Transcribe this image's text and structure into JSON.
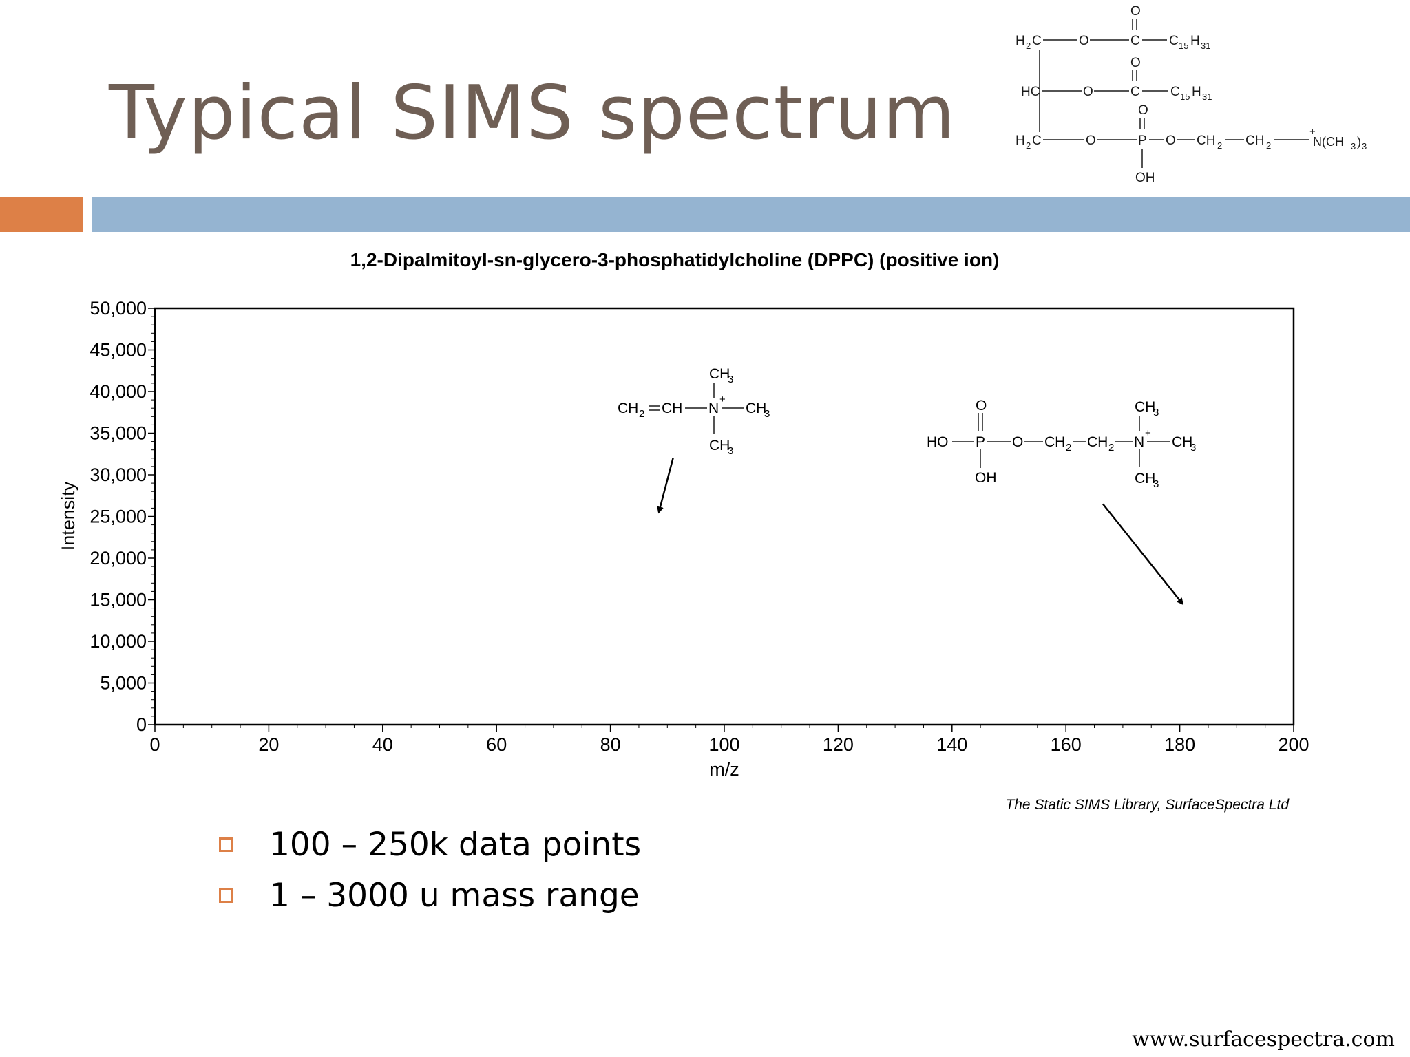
{
  "slide": {
    "title": "Typical SIMS spectrum",
    "bullets": [
      "100 – 250k data points",
      "1 – 3000 u mass range"
    ],
    "credit": "The Static SIMS Library, SurfaceSpectra Ltd",
    "website": "www.surfacespectra.com",
    "colors": {
      "title": "#6f5f55",
      "accent": "#dd8047",
      "band": "#95b4d1"
    }
  },
  "dppc_structure": {
    "row1": {
      "left": "H",
      "left_sub": "2",
      "left_c": "C",
      "o": "O",
      "c": "C",
      "top_o": "O",
      "chain": "C",
      "chain_sub1": "15",
      "chain_h": "H",
      "chain_sub2": "31"
    },
    "row2": {
      "left": "HC",
      "o": "O",
      "c": "C",
      "top_o": "O",
      "chain": "C",
      "chain_sub1": "15",
      "chain_h": "H",
      "chain_sub2": "31"
    },
    "row3": {
      "left": "H",
      "left_sub": "2",
      "left_c": "C",
      "o1": "O",
      "p": "P",
      "top_o": "O",
      "bottom": "OH",
      "o2": "O",
      "ch2a": "CH",
      "ch2a_sub": "2",
      "ch2b": "CH",
      "ch2b_sub": "2",
      "charge": "+",
      "amine": "N(CH ",
      "amine_sub": "3",
      "amine_close": ")",
      "amine_sub2": "3"
    }
  },
  "fragment_1": {
    "ch2": "CH",
    "ch2_sub": "2",
    "ch": "CH",
    "n": "N",
    "charge": "+",
    "ch3_top": "CH",
    "ch3_right": "CH",
    "ch3_bottom": "CH",
    "sub3": "3"
  },
  "fragment_2": {
    "ho": "HO",
    "p": "P",
    "top_o": "O",
    "oh": "OH",
    "o": "O",
    "ch2a": "CH",
    "ch2b": "CH",
    "sub2": "2",
    "n": "N",
    "charge": "+",
    "ch3_top": "CH",
    "ch3_right": "CH",
    "ch3_bottom": "CH",
    "sub3": "3"
  },
  "chart_data": {
    "type": "line",
    "title": "1,2-Dipalmitoyl-sn-glycero-3-phosphatidylcholine (DPPC)  (positive ion)",
    "xlabel": "m/z",
    "ylabel": "Intensity",
    "xlim": [
      0,
      200
    ],
    "ylim": [
      0,
      50000
    ],
    "x_ticks": [
      0,
      20,
      40,
      60,
      80,
      100,
      120,
      140,
      160,
      180,
      200
    ],
    "x_tick_labels": [
      "0",
      "20",
      "40",
      "60",
      "80",
      "100",
      "120",
      "140",
      "160",
      "180",
      "200"
    ],
    "y_ticks": [
      0,
      5000,
      10000,
      15000,
      20000,
      25000,
      30000,
      35000,
      40000,
      45000,
      50000
    ],
    "y_tick_labels": [
      "0",
      "5,000",
      "10,000",
      "15,000",
      "20,000",
      "25,000",
      "30,000",
      "35,000",
      "40,000",
      "45,000",
      "50,000"
    ],
    "grid": false,
    "series": [],
    "annotations": [
      {
        "text": "fragment_1",
        "arrow_from": [
          91,
          32000
        ],
        "arrow_to": [
          88.5,
          25500
        ]
      },
      {
        "text": "fragment_2",
        "arrow_from": [
          166.5,
          26500
        ],
        "arrow_to": [
          180.5,
          14500
        ]
      }
    ]
  }
}
